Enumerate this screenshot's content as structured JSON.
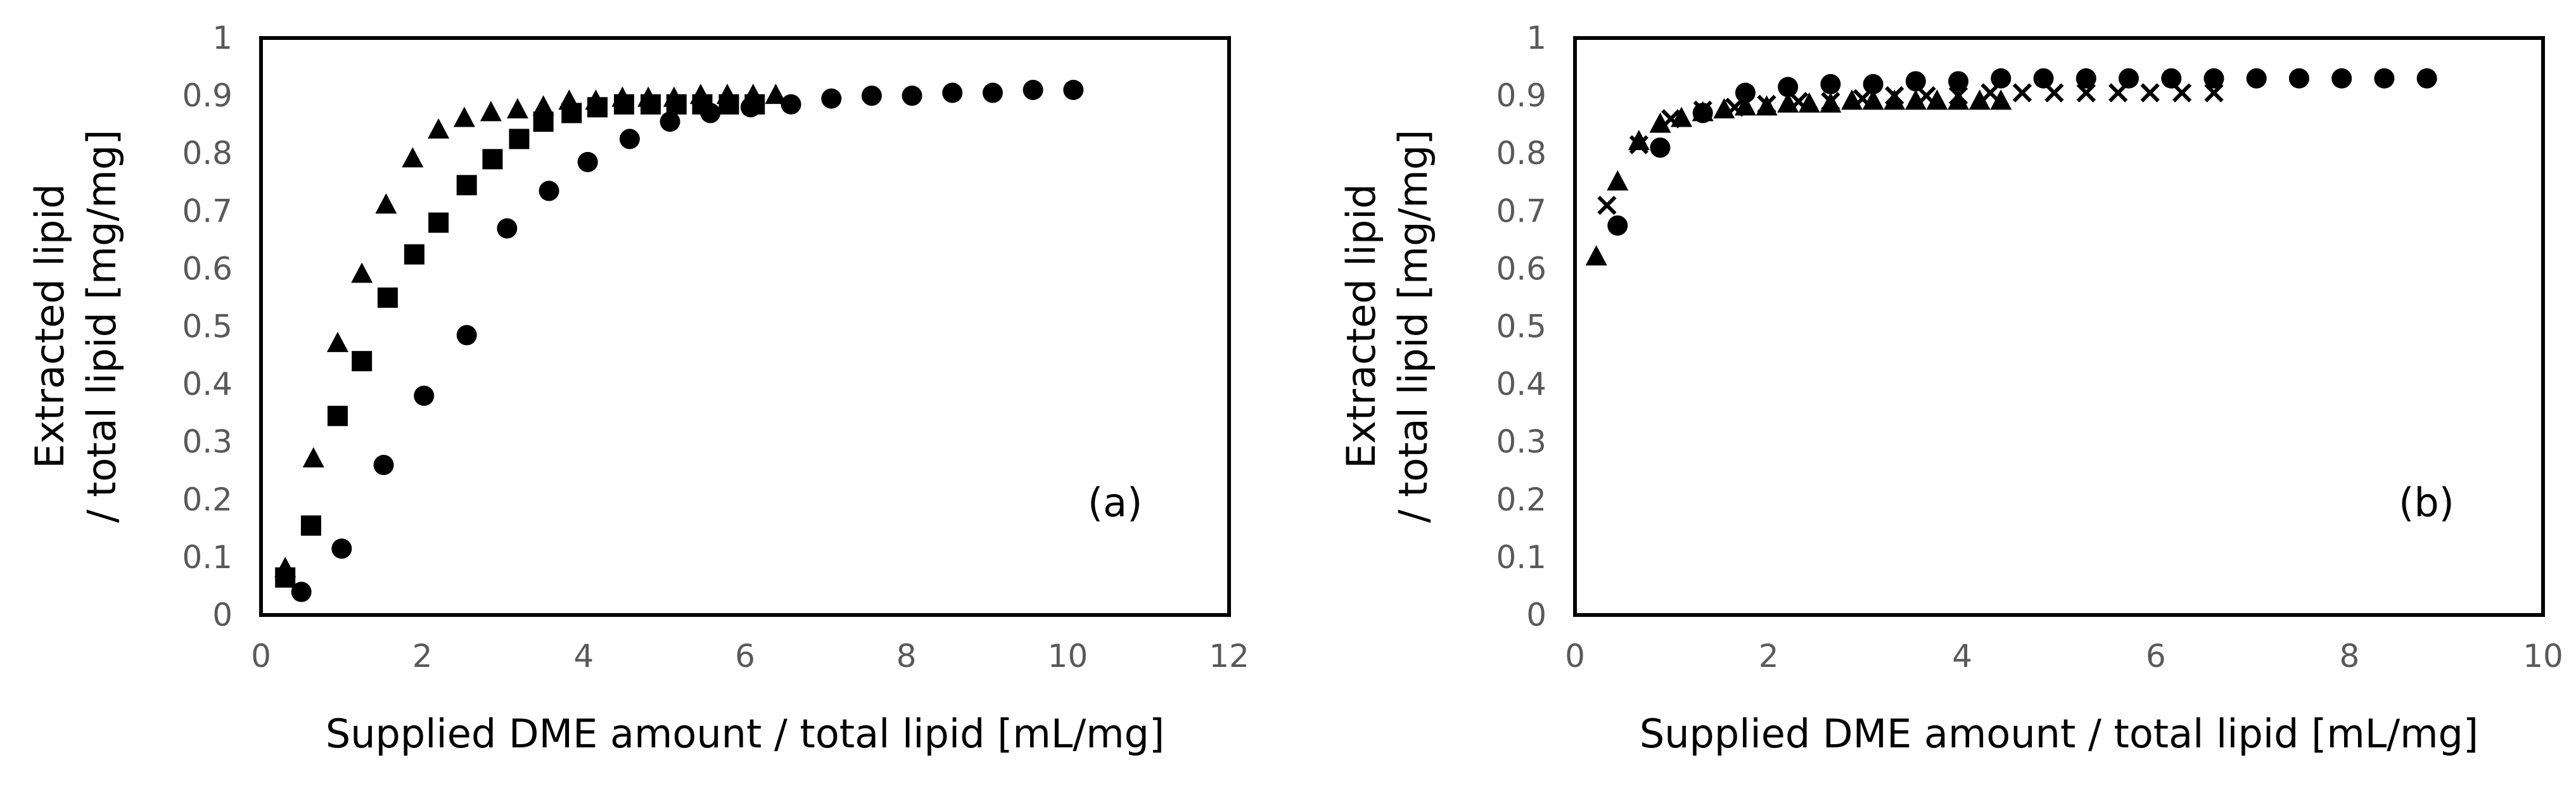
{
  "chart_data": [
    {
      "type": "scatter",
      "panel_label": "(a)",
      "xlabel": "Supplied DME amount / total lipid [mL/mg]",
      "ylabel_line1": "Extracted lipid",
      "ylabel_line2": "/ total lipid [mg/mg]",
      "xlim": [
        0,
        12
      ],
      "ylim": [
        0,
        1
      ],
      "x_ticks": [
        "0",
        "2",
        "4",
        "6",
        "8",
        "10",
        "12"
      ],
      "y_ticks": [
        "0",
        "0.1",
        "0.2",
        "0.3",
        "0.4",
        "0.5",
        "0.6",
        "0.7",
        "0.8",
        "0.9",
        "1"
      ],
      "series": [
        {
          "name": "triangles",
          "marker": "triangle",
          "x": [
            0.3,
            0.65,
            0.95,
            1.25,
            1.55,
            1.88,
            2.2,
            2.52,
            2.85,
            3.18,
            3.5,
            3.82,
            4.15,
            4.48,
            4.8,
            5.12,
            5.45,
            5.78,
            6.1,
            6.38
          ],
          "y": [
            0.08,
            0.27,
            0.47,
            0.59,
            0.71,
            0.79,
            0.84,
            0.86,
            0.87,
            0.875,
            0.88,
            0.89,
            0.89,
            0.895,
            0.895,
            0.895,
            0.9,
            0.9,
            0.9,
            0.9
          ]
        },
        {
          "name": "squares",
          "marker": "square",
          "x": [
            0.3,
            0.62,
            0.95,
            1.25,
            1.57,
            1.9,
            2.2,
            2.55,
            2.87,
            3.2,
            3.5,
            3.85,
            4.17,
            4.5,
            4.83,
            5.15,
            5.47,
            5.8,
            6.12
          ],
          "y": [
            0.065,
            0.155,
            0.345,
            0.44,
            0.55,
            0.625,
            0.68,
            0.745,
            0.79,
            0.825,
            0.855,
            0.87,
            0.88,
            0.885,
            0.885,
            0.885,
            0.885,
            0.885,
            0.885
          ]
        },
        {
          "name": "circles",
          "marker": "circle",
          "x": [
            0.5,
            1.0,
            1.52,
            2.02,
            2.55,
            3.05,
            3.57,
            4.05,
            4.57,
            5.07,
            5.57,
            6.07,
            6.57,
            7.07,
            7.57,
            8.07,
            8.57,
            9.07,
            9.57,
            10.07
          ],
          "y": [
            0.04,
            0.115,
            0.26,
            0.38,
            0.485,
            0.67,
            0.735,
            0.785,
            0.825,
            0.855,
            0.87,
            0.88,
            0.885,
            0.895,
            0.9,
            0.9,
            0.905,
            0.905,
            0.91,
            0.91
          ]
        }
      ]
    },
    {
      "type": "scatter",
      "panel_label": "(b)",
      "xlabel": "Supplied DME amount / total lipid [mL/mg]",
      "ylabel_line1": "Extracted lipid",
      "ylabel_line2": "/ total lipid [mg/mg]",
      "xlim": [
        0,
        10
      ],
      "ylim": [
        0,
        1
      ],
      "x_ticks": [
        "0",
        "2",
        "4",
        "6",
        "8",
        "10"
      ],
      "y_ticks": [
        "0",
        "0.1",
        "0.2",
        "0.3",
        "0.4",
        "0.5",
        "0.6",
        "0.7",
        "0.8",
        "0.9",
        "1"
      ],
      "series": [
        {
          "name": "triangles",
          "marker": "triangle",
          "x": [
            0.22,
            0.44,
            0.66,
            0.88,
            1.1,
            1.32,
            1.54,
            1.76,
            1.98,
            2.2,
            2.42,
            2.64,
            2.86,
            3.08,
            3.3,
            3.52,
            3.74,
            3.96,
            4.18,
            4.4
          ],
          "y": [
            0.62,
            0.75,
            0.82,
            0.85,
            0.86,
            0.87,
            0.875,
            0.88,
            0.88,
            0.885,
            0.885,
            0.885,
            0.89,
            0.89,
            0.89,
            0.89,
            0.89,
            0.89,
            0.89,
            0.89
          ]
        },
        {
          "name": "crosses",
          "marker": "cross",
          "x": [
            0.33,
            0.66,
            0.99,
            1.32,
            1.65,
            1.98,
            2.31,
            2.64,
            2.97,
            3.3,
            3.63,
            3.96,
            4.29,
            4.62,
            4.95,
            5.28,
            5.61,
            5.94,
            6.27,
            6.6
          ],
          "y": [
            0.71,
            0.815,
            0.86,
            0.875,
            0.88,
            0.885,
            0.89,
            0.89,
            0.895,
            0.9,
            0.9,
            0.9,
            0.905,
            0.905,
            0.905,
            0.905,
            0.905,
            0.905,
            0.905,
            0.905
          ]
        },
        {
          "name": "circles",
          "marker": "circle",
          "x": [
            0.44,
            0.88,
            1.32,
            1.76,
            2.2,
            2.64,
            3.08,
            3.52,
            3.96,
            4.4,
            4.84,
            5.28,
            5.72,
            6.16,
            6.6,
            7.04,
            7.48,
            7.92,
            8.36,
            8.8
          ],
          "y": [
            0.675,
            0.81,
            0.87,
            0.905,
            0.915,
            0.92,
            0.92,
            0.925,
            0.925,
            0.93,
            0.93,
            0.93,
            0.93,
            0.93,
            0.93,
            0.93,
            0.93,
            0.93,
            0.93,
            0.93
          ]
        }
      ]
    }
  ]
}
